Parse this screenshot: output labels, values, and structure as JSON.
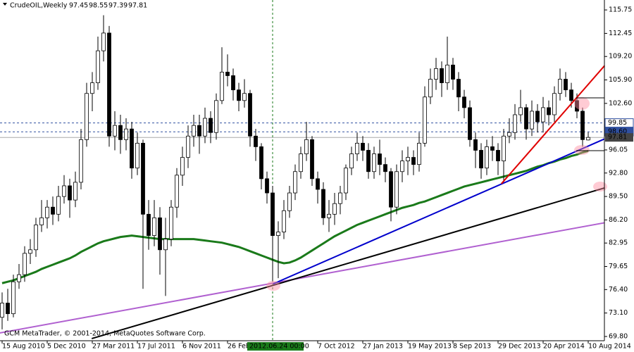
{
  "chart_data": {
    "type": "candlestick",
    "symbol": "CrudeOIL,Weekly",
    "copyright": "GCM MetaTrader, © 2001-2014, MetaQuotes Software Corp.",
    "categories": [
      "15 Aug 2010",
      null,
      null,
      null,
      null,
      null,
      null,
      null,
      "5 Dec 2010",
      null,
      null,
      null,
      null,
      null,
      null,
      null,
      "27 Mar 2011",
      null,
      null,
      null,
      null,
      null,
      null,
      null,
      "17 Jul 2011",
      null,
      null,
      null,
      null,
      null,
      null,
      null,
      "6 Nov 2011",
      null,
      null,
      null,
      null,
      null,
      null,
      null,
      "26 Feb 2012",
      null,
      null,
      null,
      null,
      null,
      null,
      null,
      "2012.06.24 00:00",
      null,
      null,
      null,
      null,
      null,
      null,
      null,
      "7 Oct 2012",
      null,
      null,
      null,
      null,
      null,
      null,
      null,
      "27 Jan 2013",
      null,
      null,
      null,
      null,
      null,
      null,
      null,
      "19 May 2013",
      null,
      null,
      null,
      null,
      null,
      null,
      null,
      "8 Sep 2013",
      null,
      null,
      null,
      null,
      null,
      null,
      null,
      "29 Dec 2013",
      null,
      null,
      null,
      null,
      null,
      null,
      null,
      "20 Apr 2014",
      null,
      null,
      null,
      null,
      null,
      null,
      null,
      "10 Aug 2014"
    ],
    "cursor_category": 48,
    "ohlc": [
      [
        72.5,
        76.0,
        70.8,
        74.5
      ],
      [
        74.5,
        76.5,
        72.0,
        73.0
      ],
      [
        73.0,
        78.5,
        72.5,
        77.5
      ],
      [
        77.5,
        80.0,
        76.5,
        78.5
      ],
      [
        78.5,
        82.5,
        77.5,
        81.5
      ],
      [
        81.5,
        83.5,
        80.0,
        82.0
      ],
      [
        82.0,
        86.5,
        81.0,
        85.5
      ],
      [
        85.5,
        89.0,
        84.5,
        86.5
      ],
      [
        86.5,
        89.0,
        85.0,
        88.0
      ],
      [
        88.0,
        89.5,
        85.5,
        87.0
      ],
      [
        87.0,
        91.0,
        86.0,
        89.5
      ],
      [
        89.5,
        92.5,
        88.5,
        91.0
      ],
      [
        91.0,
        92.0,
        86.5,
        89.0
      ],
      [
        89.0,
        93.0,
        88.0,
        91.5
      ],
      [
        91.5,
        99.0,
        90.5,
        97.5
      ],
      [
        97.5,
        105.5,
        96.5,
        104.0
      ],
      [
        104.0,
        107.0,
        101.5,
        105.5
      ],
      [
        105.5,
        112.0,
        104.5,
        110.0
      ],
      [
        110.0,
        115.0,
        108.5,
        112.5
      ],
      [
        112.5,
        113.5,
        96.5,
        98.0
      ],
      [
        98.0,
        101.5,
        96.0,
        99.5
      ],
      [
        99.5,
        101.0,
        95.5,
        97.5
      ],
      [
        97.5,
        100.5,
        96.0,
        99.0
      ],
      [
        99.0,
        100.0,
        92.0,
        93.5
      ],
      [
        93.5,
        98.5,
        92.5,
        97.0
      ],
      [
        97.0,
        97.5,
        76.5,
        87.0
      ],
      [
        87.0,
        89.0,
        82.0,
        84.0
      ],
      [
        84.0,
        89.0,
        82.5,
        86.5
      ],
      [
        86.5,
        88.0,
        78.5,
        82.0
      ],
      [
        82.0,
        86.5,
        75.5,
        83.5
      ],
      [
        83.5,
        89.0,
        82.5,
        88.0
      ],
      [
        88.0,
        93.5,
        86.5,
        92.5
      ],
      [
        92.5,
        96.5,
        91.0,
        95.0
      ],
      [
        95.0,
        99.5,
        93.5,
        98.0
      ],
      [
        98.0,
        101.0,
        96.5,
        99.5
      ],
      [
        99.5,
        101.0,
        95.5,
        98.0
      ],
      [
        98.0,
        102.0,
        97.0,
        100.5
      ],
      [
        100.5,
        101.5,
        97.0,
        98.5
      ],
      [
        98.5,
        104.0,
        97.5,
        103.0
      ],
      [
        103.0,
        110.5,
        102.5,
        107.0
      ],
      [
        107.0,
        109.5,
        105.0,
        106.5
      ],
      [
        106.5,
        107.5,
        103.0,
        104.5
      ],
      [
        104.5,
        105.5,
        101.5,
        103.0
      ],
      [
        103.0,
        106.0,
        102.0,
        104.0
      ],
      [
        104.0,
        104.5,
        96.5,
        98.0
      ],
      [
        98.0,
        99.0,
        94.5,
        96.5
      ],
      [
        96.5,
        97.0,
        90.5,
        92.0
      ],
      [
        92.0,
        93.0,
        88.5,
        90.0
      ],
      [
        90.0,
        91.0,
        77.5,
        84.0
      ],
      [
        84.0,
        86.0,
        78.0,
        84.5
      ],
      [
        84.5,
        89.0,
        83.5,
        87.5
      ],
      [
        87.5,
        91.0,
        86.5,
        90.0
      ],
      [
        90.0,
        94.0,
        89.0,
        93.0
      ],
      [
        93.0,
        96.5,
        92.0,
        95.5
      ],
      [
        95.5,
        100.0,
        94.5,
        97.5
      ],
      [
        97.5,
        98.0,
        91.0,
        92.0
      ],
      [
        92.0,
        93.0,
        88.5,
        90.5
      ],
      [
        90.5,
        91.5,
        85.5,
        86.5
      ],
      [
        86.5,
        89.0,
        84.5,
        87.0
      ],
      [
        87.0,
        90.0,
        85.5,
        88.5
      ],
      [
        88.5,
        91.0,
        87.0,
        90.0
      ],
      [
        90.0,
        94.0,
        89.0,
        93.5
      ],
      [
        93.5,
        96.5,
        92.5,
        95.5
      ],
      [
        95.5,
        98.5,
        94.5,
        97.0
      ],
      [
        97.0,
        98.0,
        94.5,
        96.0
      ],
      [
        96.0,
        97.0,
        92.0,
        93.0
      ],
      [
        93.0,
        96.5,
        92.0,
        95.5
      ],
      [
        95.5,
        97.5,
        92.5,
        94.0
      ],
      [
        94.0,
        95.0,
        91.5,
        93.0
      ],
      [
        93.0,
        93.5,
        86.0,
        88.0
      ],
      [
        88.0,
        94.0,
        87.0,
        93.0
      ],
      [
        93.0,
        96.0,
        91.5,
        94.5
      ],
      [
        94.5,
        96.5,
        92.5,
        95.0
      ],
      [
        95.0,
        96.0,
        92.5,
        94.0
      ],
      [
        94.0,
        98.5,
        93.0,
        97.0
      ],
      [
        97.0,
        105.0,
        96.5,
        103.5
      ],
      [
        103.5,
        107.5,
        102.5,
        106.0
      ],
      [
        106.0,
        109.0,
        104.5,
        107.5
      ],
      [
        107.5,
        108.5,
        103.5,
        105.5
      ],
      [
        105.5,
        112.0,
        104.5,
        108.0
      ],
      [
        108.0,
        109.0,
        104.5,
        106.0
      ],
      [
        106.0,
        107.0,
        101.5,
        103.5
      ],
      [
        103.5,
        104.5,
        100.5,
        102.0
      ],
      [
        102.0,
        103.0,
        96.5,
        97.5
      ],
      [
        97.5,
        98.5,
        93.5,
        96.0
      ],
      [
        96.0,
        97.0,
        92.0,
        93.5
      ],
      [
        93.5,
        97.5,
        92.5,
        96.5
      ],
      [
        96.5,
        98.0,
        94.5,
        96.0
      ],
      [
        96.0,
        97.0,
        92.5,
        94.5
      ],
      [
        94.5,
        99.0,
        91.5,
        98.0
      ],
      [
        98.0,
        100.5,
        97.0,
        98.5
      ],
      [
        98.5,
        102.5,
        97.5,
        101.0
      ],
      [
        101.0,
        104.5,
        100.0,
        102.0
      ],
      [
        102.0,
        102.5,
        97.5,
        99.0
      ],
      [
        99.0,
        103.0,
        98.0,
        101.5
      ],
      [
        101.5,
        102.5,
        98.5,
        100.0
      ],
      [
        100.0,
        103.5,
        98.5,
        102.0
      ],
      [
        102.0,
        103.0,
        99.5,
        101.0
      ],
      [
        101.0,
        105.0,
        100.0,
        104.0
      ],
      [
        104.0,
        107.5,
        103.0,
        106.0
      ],
      [
        106.0,
        107.0,
        103.5,
        104.5
      ],
      [
        104.5,
        105.5,
        102.0,
        103.0
      ],
      [
        103.0,
        104.0,
        100.5,
        101.5
      ],
      [
        101.5,
        102.0,
        96.5,
        97.5
      ],
      [
        97.45,
        98.55,
        97.39,
        97.81
      ]
    ],
    "up_color": "#ffffff",
    "down_color": "#000000",
    "ma": {
      "color": "#1a7a1a",
      "values": [
        77.3,
        77.5,
        77.7,
        78.0,
        78.3,
        78.6,
        78.9,
        79.3,
        79.6,
        79.9,
        80.2,
        80.5,
        80.8,
        81.2,
        81.7,
        82.1,
        82.5,
        82.9,
        83.2,
        83.4,
        83.6,
        83.8,
        83.9,
        84.0,
        83.9,
        83.8,
        83.7,
        83.6,
        83.5,
        83.5,
        83.5,
        83.5,
        83.5,
        83.5,
        83.5,
        83.4,
        83.3,
        83.2,
        83.1,
        83.0,
        82.8,
        82.6,
        82.4,
        82.1,
        81.8,
        81.5,
        81.2,
        80.9,
        80.6,
        80.3,
        80.1,
        80.2,
        80.5,
        80.9,
        81.4,
        81.9,
        82.4,
        82.9,
        83.4,
        83.9,
        84.3,
        84.7,
        85.1,
        85.5,
        85.8,
        86.1,
        86.4,
        86.7,
        87.0,
        87.3,
        87.6,
        87.9,
        88.1,
        88.3,
        88.6,
        88.8,
        89.1,
        89.4,
        89.7,
        90.0,
        90.3,
        90.6,
        90.9,
        91.1,
        91.3,
        91.5,
        91.7,
        91.9,
        92.1,
        92.3,
        92.5,
        92.7,
        92.9,
        93.1,
        93.4,
        93.7,
        93.9,
        94.2,
        94.4,
        94.7,
        94.9,
        95.2,
        95.4,
        95.7,
        95.9
      ]
    },
    "trendlines": [
      {
        "color": "#b060d0",
        "x": [
          -0.4,
          106.9
        ],
        "y": [
          70.3,
          85.8
        ]
      },
      {
        "color": "#000000",
        "x": [
          15.9,
          106.9
        ],
        "y": [
          69.5,
          90.7
        ]
      },
      {
        "color": "#0000cc",
        "x": [
          48.1,
          106.9
        ],
        "y": [
          77.2,
          97.6
        ]
      },
      {
        "color": "#e00000",
        "x": [
          88.6,
          106.9
        ],
        "y": [
          91.3,
          107.9
        ]
      }
    ],
    "price_levels": [
      99.85,
      {
        "value": 98.6,
        "label": "98.60"
      }
    ],
    "level_color": "#3050a0",
    "ylim": [
      69.2,
      116.85
    ],
    "yticks": [
      {
        "value": 69.8,
        "label": "69.80"
      },
      {
        "value": 73.1,
        "label": "73.10"
      },
      {
        "value": 76.4,
        "label": "76.40"
      },
      79.65,
      82.95,
      {
        "value": 86.2,
        "label": "86.20"
      },
      {
        "value": 89.5,
        "label": "89.50"
      },
      {
        "value": 92.8,
        "label": "92.80"
      },
      96.05,
      {
        "value": 102.6,
        "label": "102.60"
      },
      {
        "value": 105.9,
        "label": "105.90"
      },
      {
        "value": 109.2,
        "label": "109.20"
      },
      112.45,
      115.75
    ]
  }
}
